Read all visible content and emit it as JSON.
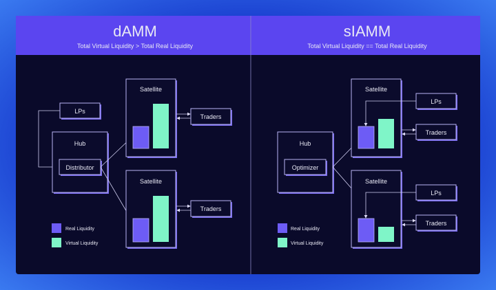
{
  "colors": {
    "header": "#5b45f0",
    "panel": "#0a0a2a",
    "real": "#6d5cf5",
    "virtual": "#7ff5c8"
  },
  "left": {
    "title": "dAMM",
    "subtitle": "Total Virtual Liquidity > Total Real Liquidity",
    "lps": "LPs",
    "hub": "Hub",
    "hub_component": "Distributor",
    "satellite_top": "Satellite",
    "satellite_bottom": "Satellite",
    "traders_top": "Traders",
    "traders_bottom": "Traders",
    "legend": {
      "real": "Real Liquidity",
      "virtual": "Virtual Liquidity"
    }
  },
  "right": {
    "title": "sIAMM",
    "subtitle": "Total Virtual Liquidity == Total Real Liquidity",
    "hub": "Hub",
    "hub_component": "Optimizer",
    "satellite_top": "Satellite",
    "satellite_bottom": "Satellite",
    "lps_top": "LPs",
    "lps_bottom": "LPs",
    "traders_top": "Traders",
    "traders_bottom": "Traders",
    "legend": {
      "real": "Real Liquidity",
      "virtual": "Virtual Liquidity"
    }
  }
}
